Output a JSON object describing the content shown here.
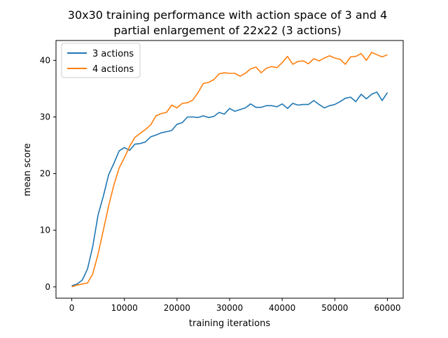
{
  "chart_data": {
    "type": "line",
    "title": "30x30 training performance with action space of 3 and 4",
    "subtitle": "partial enlargement of 22x22 (3 actions)",
    "xlabel": "training iterations",
    "ylabel": "mean score",
    "xlim": [
      -3000,
      63000
    ],
    "ylim": [
      -2,
      43.5
    ],
    "xticks": [
      0,
      10000,
      20000,
      30000,
      40000,
      50000,
      60000
    ],
    "yticks": [
      0,
      10,
      20,
      30,
      40
    ],
    "grid": false,
    "legend_position": "top-left",
    "x": [
      0,
      1000,
      2000,
      3000,
      4000,
      5000,
      6000,
      7000,
      8000,
      9000,
      10000,
      11000,
      12000,
      13000,
      14000,
      15000,
      16000,
      17000,
      18000,
      19000,
      20000,
      21000,
      22000,
      23000,
      24000,
      25000,
      26000,
      27000,
      28000,
      29000,
      30000,
      31000,
      32000,
      33000,
      34000,
      35000,
      36000,
      37000,
      38000,
      39000,
      40000,
      41000,
      42000,
      43000,
      44000,
      45000,
      46000,
      47000,
      48000,
      49000,
      50000,
      51000,
      52000,
      53000,
      54000,
      55000,
      56000,
      57000,
      58000,
      59000,
      60000
    ],
    "series": [
      {
        "name": "3 actions",
        "color": "#1f77b4",
        "values": [
          0.2,
          0.5,
          1.2,
          3.2,
          7.2,
          12.7,
          16.0,
          19.8,
          21.8,
          24.0,
          24.6,
          24.1,
          25.2,
          25.3,
          25.6,
          26.5,
          26.8,
          27.2,
          27.4,
          27.6,
          28.7,
          29.0,
          30.0,
          30.0,
          29.9,
          30.2,
          29.9,
          30.1,
          30.8,
          30.5,
          31.5,
          31.0,
          31.3,
          31.6,
          32.3,
          31.7,
          31.7,
          32.0,
          32.0,
          31.8,
          32.3,
          31.5,
          32.4,
          32.1,
          32.2,
          32.2,
          32.9,
          32.2,
          31.6,
          32.0,
          32.2,
          32.7,
          33.3,
          33.5,
          32.7,
          34.0,
          33.2,
          34.0,
          34.4,
          32.9,
          34.3
        ]
      },
      {
        "name": "4 actions",
        "color": "#ff7f0e",
        "values": [
          0.0,
          0.3,
          0.5,
          0.7,
          2.3,
          5.8,
          10.0,
          14.3,
          18.0,
          21.0,
          22.8,
          24.8,
          26.4,
          27.1,
          27.8,
          28.6,
          30.2,
          30.6,
          30.8,
          32.1,
          31.6,
          32.4,
          32.5,
          33.0,
          34.3,
          35.9,
          36.1,
          36.6,
          37.6,
          37.8,
          37.7,
          37.7,
          37.2,
          37.7,
          38.5,
          38.8,
          37.8,
          38.6,
          38.9,
          38.7,
          39.6,
          40.7,
          39.3,
          39.8,
          39.9,
          39.4,
          40.3,
          39.9,
          40.4,
          40.8,
          40.4,
          40.2,
          39.3,
          40.6,
          40.7,
          41.2,
          40.0,
          41.4,
          41.0,
          40.6,
          41.0
        ]
      }
    ],
    "styles": {
      "axis_color": "#000000",
      "background": "#ffffff",
      "legend_border": "#cccccc"
    }
  }
}
